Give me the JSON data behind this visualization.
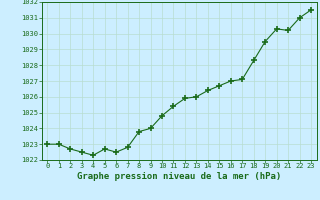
{
  "x": [
    0,
    1,
    2,
    3,
    4,
    5,
    6,
    7,
    8,
    9,
    10,
    11,
    12,
    13,
    14,
    15,
    16,
    17,
    18,
    19,
    20,
    21,
    22,
    23
  ],
  "y": [
    1023.0,
    1023.0,
    1022.7,
    1022.5,
    1022.3,
    1022.7,
    1022.5,
    1022.8,
    1023.8,
    1024.0,
    1024.8,
    1025.4,
    1025.9,
    1026.0,
    1026.4,
    1026.7,
    1027.0,
    1027.1,
    1028.3,
    1029.5,
    1030.3,
    1030.2,
    1031.0,
    1031.5
  ],
  "ylim": [
    1022.0,
    1032.0
  ],
  "xlim": [
    -0.5,
    23.5
  ],
  "yticks": [
    1022,
    1023,
    1024,
    1025,
    1026,
    1027,
    1028,
    1029,
    1030,
    1031,
    1032
  ],
  "xticks": [
    0,
    1,
    2,
    3,
    4,
    5,
    6,
    7,
    8,
    9,
    10,
    11,
    12,
    13,
    14,
    15,
    16,
    17,
    18,
    19,
    20,
    21,
    22,
    23
  ],
  "xlabel": "Graphe pression niveau de la mer (hPa)",
  "line_color": "#1a6b1a",
  "marker_color": "#1a6b1a",
  "bg_color": "#cceeff",
  "grid_color": "#b8ddd0",
  "tick_label_color": "#1a6b1a",
  "xlabel_color": "#1a6b1a",
  "tick_fontsize": 5.0,
  "xlabel_fontsize": 6.5
}
